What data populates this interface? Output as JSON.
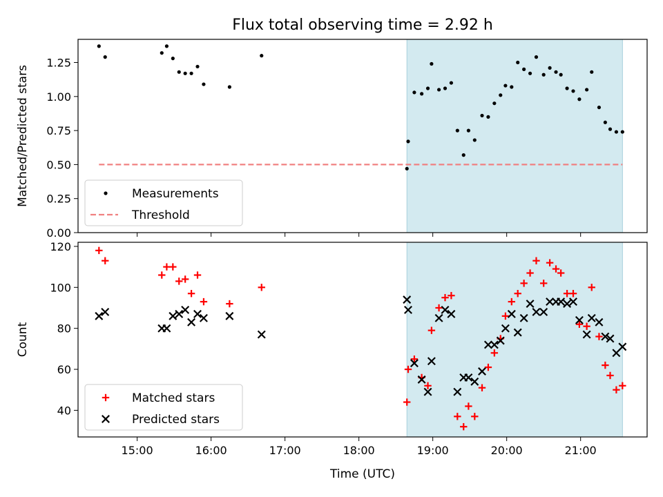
{
  "chart_data": {
    "title": "Flux total observing time = 2.92 h",
    "xlabel": "Time (UTC)",
    "x_ticks": [
      "15:00",
      "16:00",
      "17:00",
      "18:00",
      "19:00",
      "20:00",
      "21:00"
    ],
    "x_range": [
      "14:12",
      "21:54"
    ],
    "shaded_interval": [
      "18:39",
      "21:34"
    ],
    "colors": {
      "shade": "#d3eaf0",
      "shade_edge": "#a8d0dc",
      "matched": "#ff0000",
      "predicted": "#000000",
      "threshold": "#f08080"
    },
    "panels": [
      {
        "type": "scatter",
        "ylabel": "Matched/Predicted stars",
        "ylim": [
          0,
          1.42
        ],
        "y_ticks": [
          "0.00",
          "0.25",
          "0.50",
          "0.75",
          "1.00",
          "1.25"
        ],
        "legend_position": "lower-left",
        "series": [
          {
            "name": "Measurements",
            "marker": "dot",
            "points": [
              [
                "14:29",
                1.37
              ],
              [
                "14:34",
                1.29
              ],
              [
                "15:20",
                1.32
              ],
              [
                "15:24",
                1.37
              ],
              [
                "15:29",
                1.28
              ],
              [
                "15:34",
                1.18
              ],
              [
                "15:39",
                1.17
              ],
              [
                "15:44",
                1.17
              ],
              [
                "15:49",
                1.22
              ],
              [
                "15:54",
                1.09
              ],
              [
                "16:15",
                1.07
              ],
              [
                "16:41",
                1.3
              ],
              [
                "18:39",
                0.47
              ],
              [
                "18:40",
                0.67
              ],
              [
                "18:45",
                1.03
              ],
              [
                "18:51",
                1.02
              ],
              [
                "18:56",
                1.06
              ],
              [
                "18:59",
                1.24
              ],
              [
                "19:05",
                1.05
              ],
              [
                "19:10",
                1.06
              ],
              [
                "19:15",
                1.1
              ],
              [
                "19:20",
                0.75
              ],
              [
                "19:25",
                0.57
              ],
              [
                "19:29",
                0.75
              ],
              [
                "19:34",
                0.68
              ],
              [
                "19:40",
                0.86
              ],
              [
                "19:45",
                0.85
              ],
              [
                "19:50",
                0.95
              ],
              [
                "19:55",
                1.01
              ],
              [
                "19:59",
                1.08
              ],
              [
                "20:04",
                1.07
              ],
              [
                "20:09",
                1.25
              ],
              [
                "20:14",
                1.2
              ],
              [
                "20:19",
                1.17
              ],
              [
                "20:24",
                1.29
              ],
              [
                "20:30",
                1.16
              ],
              [
                "20:35",
                1.21
              ],
              [
                "20:40",
                1.18
              ],
              [
                "20:44",
                1.16
              ],
              [
                "20:49",
                1.06
              ],
              [
                "20:54",
                1.04
              ],
              [
                "20:59",
                0.98
              ],
              [
                "21:05",
                1.05
              ],
              [
                "21:09",
                1.18
              ],
              [
                "21:15",
                0.92
              ],
              [
                "21:20",
                0.81
              ],
              [
                "21:24",
                0.76
              ],
              [
                "21:29",
                0.74
              ],
              [
                "21:34",
                0.74
              ]
            ]
          },
          {
            "name": "Threshold",
            "type": "line",
            "style": "dashed",
            "x": [
              "14:29",
              "21:34"
            ],
            "y": 0.5
          }
        ]
      },
      {
        "type": "scatter",
        "ylabel": "Count",
        "ylim": [
          27,
          122
        ],
        "y_ticks": [
          "40",
          "60",
          "80",
          "100",
          "120"
        ],
        "legend_position": "lower-left",
        "series": [
          {
            "name": "Matched stars",
            "marker": "plus",
            "points": [
              [
                "14:29",
                118
              ],
              [
                "14:34",
                113
              ],
              [
                "15:20",
                106
              ],
              [
                "15:24",
                110
              ],
              [
                "15:29",
                110
              ],
              [
                "15:34",
                103
              ],
              [
                "15:39",
                104
              ],
              [
                "15:44",
                97
              ],
              [
                "15:49",
                106
              ],
              [
                "15:54",
                93
              ],
              [
                "16:15",
                92
              ],
              [
                "16:41",
                100
              ],
              [
                "18:39",
                44
              ],
              [
                "18:40",
                60
              ],
              [
                "18:45",
                65
              ],
              [
                "18:51",
                56
              ],
              [
                "18:56",
                52
              ],
              [
                "18:59",
                79
              ],
              [
                "19:05",
                90
              ],
              [
                "19:10",
                95
              ],
              [
                "19:15",
                96
              ],
              [
                "19:20",
                37
              ],
              [
                "19:25",
                32
              ],
              [
                "19:29",
                42
              ],
              [
                "19:34",
                37
              ],
              [
                "19:40",
                51
              ],
              [
                "19:45",
                61
              ],
              [
                "19:50",
                68
              ],
              [
                "19:55",
                75
              ],
              [
                "19:59",
                86
              ],
              [
                "20:04",
                93
              ],
              [
                "20:09",
                97
              ],
              [
                "20:14",
                102
              ],
              [
                "20:19",
                107
              ],
              [
                "20:24",
                113
              ],
              [
                "20:30",
                102
              ],
              [
                "20:35",
                112
              ],
              [
                "20:40",
                109
              ],
              [
                "20:44",
                107
              ],
              [
                "20:49",
                97
              ],
              [
                "20:54",
                97
              ],
              [
                "20:59",
                82
              ],
              [
                "21:05",
                81
              ],
              [
                "21:09",
                100
              ],
              [
                "21:15",
                76
              ],
              [
                "21:20",
                62
              ],
              [
                "21:24",
                57
              ],
              [
                "21:29",
                50
              ],
              [
                "21:34",
                52
              ]
            ]
          },
          {
            "name": "Predicted stars",
            "marker": "x",
            "points": [
              [
                "14:29",
                86
              ],
              [
                "14:34",
                88
              ],
              [
                "15:20",
                80
              ],
              [
                "15:24",
                80
              ],
              [
                "15:29",
                86
              ],
              [
                "15:34",
                87
              ],
              [
                "15:39",
                89
              ],
              [
                "15:44",
                83
              ],
              [
                "15:49",
                87
              ],
              [
                "15:54",
                85
              ],
              [
                "16:15",
                86
              ],
              [
                "16:41",
                77
              ],
              [
                "18:39",
                94
              ],
              [
                "18:40",
                89
              ],
              [
                "18:45",
                63
              ],
              [
                "18:51",
                55
              ],
              [
                "18:56",
                49
              ],
              [
                "18:59",
                64
              ],
              [
                "19:05",
                85
              ],
              [
                "19:10",
                89
              ],
              [
                "19:15",
                87
              ],
              [
                "19:20",
                49
              ],
              [
                "19:25",
                56
              ],
              [
                "19:29",
                56
              ],
              [
                "19:34",
                54
              ],
              [
                "19:40",
                59
              ],
              [
                "19:45",
                72
              ],
              [
                "19:50",
                72
              ],
              [
                "19:55",
                74
              ],
              [
                "19:59",
                80
              ],
              [
                "20:04",
                87
              ],
              [
                "20:09",
                78
              ],
              [
                "20:14",
                85
              ],
              [
                "20:19",
                92
              ],
              [
                "20:24",
                88
              ],
              [
                "20:30",
                88
              ],
              [
                "20:35",
                93
              ],
              [
                "20:40",
                93
              ],
              [
                "20:44",
                93
              ],
              [
                "20:49",
                92
              ],
              [
                "20:54",
                93
              ],
              [
                "20:59",
                84
              ],
              [
                "21:05",
                77
              ],
              [
                "21:09",
                85
              ],
              [
                "21:15",
                83
              ],
              [
                "21:20",
                76
              ],
              [
                "21:24",
                75
              ],
              [
                "21:29",
                68
              ],
              [
                "21:34",
                71
              ]
            ]
          }
        ]
      }
    ]
  }
}
